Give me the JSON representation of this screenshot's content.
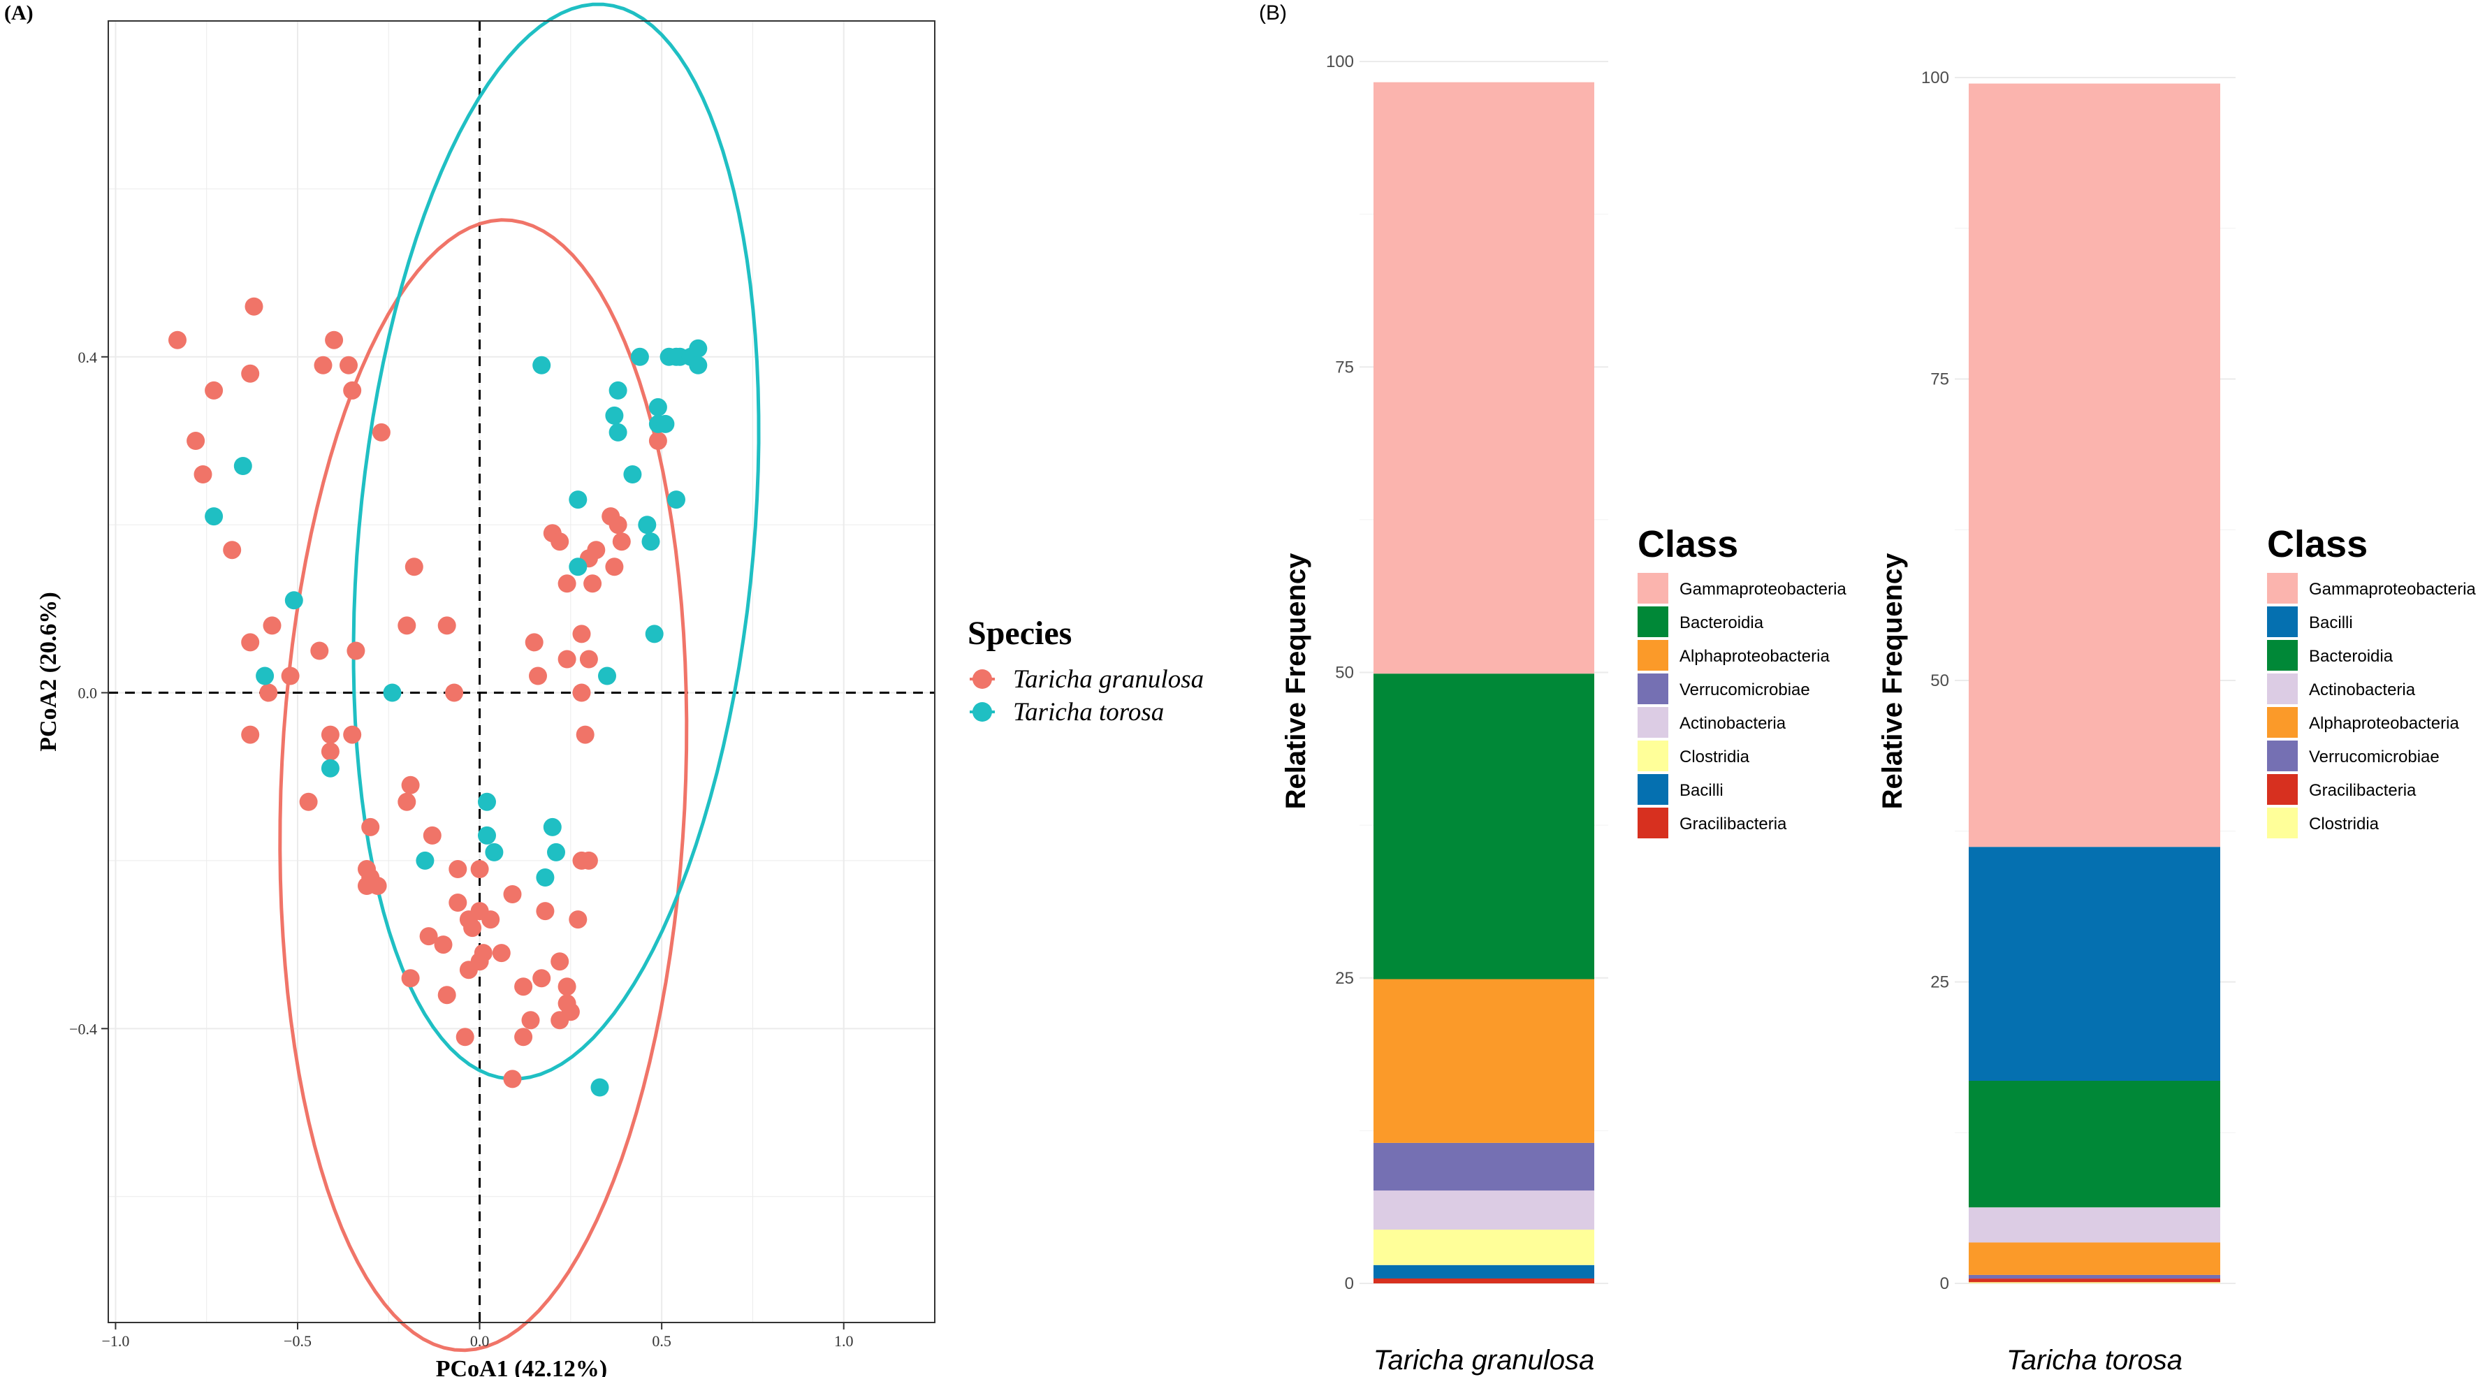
{
  "panel_a": {
    "label": "(A)",
    "legend_title": "Species",
    "legend_items": [
      {
        "name": "Taricha granulosa",
        "color": "#F07468"
      },
      {
        "name": "Taricha torosa",
        "color": "#1FBFC3"
      }
    ]
  },
  "panel_b": {
    "label": "(B)"
  },
  "chart_data": [
    {
      "type": "scatter",
      "title": "",
      "xlabel": "PCoA1 (42.12%)",
      "ylabel": "PCoA2 (20.6%)",
      "xlim": [
        -1.02,
        1.25
      ],
      "ylim": [
        -0.75,
        0.8
      ],
      "xticks": [
        -1.0,
        -0.5,
        0.0,
        0.5,
        1.0
      ],
      "xtick_labels": [
        "−1.0",
        "−0.5",
        "0.0",
        "0.5",
        "1.0"
      ],
      "yticks": [
        -0.4,
        0.0,
        0.4
      ],
      "ytick_labels": [
        "−0.4",
        "0.0",
        "0.4"
      ],
      "grid": true,
      "reference_lines": {
        "x": 0,
        "y": 0
      },
      "series": [
        {
          "name": "Taricha granulosa",
          "color": "#F07468",
          "ellipse": {
            "cx": 0.01,
            "cy": -0.11,
            "rx": 0.68,
            "ry": 0.55,
            "angle_deg": 76
          },
          "points": [
            [
              -0.83,
              0.42
            ],
            [
              -0.62,
              0.46
            ],
            [
              -0.4,
              0.42
            ],
            [
              -0.43,
              0.39
            ],
            [
              -0.36,
              0.39
            ],
            [
              -0.73,
              0.36
            ],
            [
              -0.63,
              0.38
            ],
            [
              -0.35,
              0.36
            ],
            [
              -0.78,
              0.3
            ],
            [
              -0.27,
              0.31
            ],
            [
              -0.76,
              0.26
            ],
            [
              -0.68,
              0.17
            ],
            [
              -0.18,
              0.15
            ],
            [
              -0.2,
              0.08
            ],
            [
              -0.09,
              0.08
            ],
            [
              -0.57,
              0.08
            ],
            [
              -0.63,
              0.06
            ],
            [
              -0.44,
              0.05
            ],
            [
              -0.34,
              0.05
            ],
            [
              -0.52,
              0.02
            ],
            [
              -0.58,
              0.0
            ],
            [
              -0.07,
              0.0
            ],
            [
              0.16,
              0.02
            ],
            [
              -0.63,
              -0.05
            ],
            [
              -0.41,
              -0.05
            ],
            [
              -0.35,
              -0.05
            ],
            [
              -0.41,
              -0.07
            ],
            [
              -0.47,
              -0.13
            ],
            [
              -0.19,
              -0.11
            ],
            [
              -0.2,
              -0.13
            ],
            [
              -0.3,
              -0.16
            ],
            [
              -0.13,
              -0.17
            ],
            [
              -0.31,
              -0.21
            ],
            [
              -0.3,
              -0.22
            ],
            [
              -0.31,
              -0.23
            ],
            [
              -0.28,
              -0.23
            ],
            [
              -0.06,
              -0.21
            ],
            [
              0.0,
              -0.21
            ],
            [
              -0.06,
              -0.25
            ],
            [
              0.0,
              -0.26
            ],
            [
              -0.03,
              -0.27
            ],
            [
              0.03,
              -0.27
            ],
            [
              0.09,
              -0.24
            ],
            [
              0.18,
              -0.26
            ],
            [
              0.27,
              -0.27
            ],
            [
              -0.02,
              -0.28
            ],
            [
              -0.14,
              -0.29
            ],
            [
              -0.1,
              -0.3
            ],
            [
              0.01,
              -0.31
            ],
            [
              0.06,
              -0.31
            ],
            [
              0.0,
              -0.32
            ],
            [
              -0.03,
              -0.33
            ],
            [
              0.22,
              -0.32
            ],
            [
              0.17,
              -0.34
            ],
            [
              -0.19,
              -0.34
            ],
            [
              0.12,
              -0.35
            ],
            [
              0.24,
              -0.35
            ],
            [
              -0.09,
              -0.36
            ],
            [
              0.24,
              -0.37
            ],
            [
              0.25,
              -0.38
            ],
            [
              0.14,
              -0.39
            ],
            [
              0.22,
              -0.39
            ],
            [
              -0.04,
              -0.41
            ],
            [
              0.12,
              -0.41
            ],
            [
              0.09,
              -0.46
            ],
            [
              0.2,
              0.19
            ],
            [
              0.22,
              0.18
            ],
            [
              0.36,
              0.21
            ],
            [
              0.38,
              0.2
            ],
            [
              0.39,
              0.18
            ],
            [
              0.3,
              0.16
            ],
            [
              0.32,
              0.17
            ],
            [
              0.37,
              0.15
            ],
            [
              0.31,
              0.13
            ],
            [
              0.28,
              0.07
            ],
            [
              0.3,
              0.04
            ],
            [
              0.15,
              0.06
            ],
            [
              0.24,
              0.04
            ],
            [
              0.28,
              0.0
            ],
            [
              0.29,
              -0.05
            ],
            [
              0.28,
              -0.2
            ],
            [
              0.3,
              -0.2
            ],
            [
              0.49,
              0.3
            ],
            [
              0.24,
              0.13
            ]
          ]
        },
        {
          "name": "Taricha torosa",
          "color": "#1FBFC3",
          "ellipse": {
            "cx": 0.21,
            "cy": 0.18,
            "rx": 0.67,
            "ry": 0.52,
            "angle_deg": 62
          },
          "points": [
            [
              0.52,
              0.4
            ],
            [
              0.54,
              0.4
            ],
            [
              0.55,
              0.4
            ],
            [
              0.58,
              0.4
            ],
            [
              0.6,
              0.41
            ],
            [
              0.6,
              0.39
            ],
            [
              0.44,
              0.4
            ],
            [
              0.17,
              0.39
            ],
            [
              0.38,
              0.36
            ],
            [
              0.37,
              0.33
            ],
            [
              0.49,
              0.34
            ],
            [
              0.49,
              0.32
            ],
            [
              0.51,
              0.32
            ],
            [
              0.38,
              0.31
            ],
            [
              -0.65,
              0.27
            ],
            [
              0.42,
              0.26
            ],
            [
              -0.73,
              0.21
            ],
            [
              0.27,
              0.23
            ],
            [
              0.54,
              0.23
            ],
            [
              0.46,
              0.2
            ],
            [
              0.47,
              0.18
            ],
            [
              0.27,
              0.15
            ],
            [
              -0.51,
              0.11
            ],
            [
              0.48,
              0.07
            ],
            [
              0.35,
              0.02
            ],
            [
              -0.59,
              0.02
            ],
            [
              -0.24,
              0.0
            ],
            [
              -0.41,
              -0.09
            ],
            [
              0.02,
              -0.13
            ],
            [
              0.2,
              -0.16
            ],
            [
              0.02,
              -0.17
            ],
            [
              0.21,
              -0.19
            ],
            [
              -0.15,
              -0.2
            ],
            [
              0.04,
              -0.19
            ],
            [
              0.18,
              -0.22
            ],
            [
              0.33,
              -0.47
            ]
          ]
        }
      ]
    },
    {
      "type": "stacked_bar",
      "title": "",
      "xlabel": "",
      "ylabel": "Relative Frequency",
      "ylim": [
        0,
        100
      ],
      "yticks": [
        0,
        25,
        50,
        75,
        100
      ],
      "categories": [
        "Taricha granulosa"
      ],
      "legend_title": "Class",
      "legend_position": "right",
      "segments": [
        {
          "name": "Gracilibacteria",
          "color": "#D7301F",
          "value": 0.4
        },
        {
          "name": "Bacilli",
          "color": "#0570B0",
          "value": 1.1
        },
        {
          "name": "Clostridia",
          "color": "#FFFF99",
          "value": 2.9
        },
        {
          "name": "Actinobacteria",
          "color": "#DCCCE4",
          "value": 3.2
        },
        {
          "name": "Verrucomicrobiae",
          "color": "#7570B3",
          "value": 3.9
        },
        {
          "name": "Alphaproteobacteria",
          "color": "#FB9A29",
          "value": 13.4
        },
        {
          "name": "Bacteroidia",
          "color": "#008837",
          "value": 25.0
        },
        {
          "name": "Gammaproteobacteria",
          "color": "#FBB4AE",
          "value": 48.4
        }
      ],
      "legend_order": [
        "Gammaproteobacteria",
        "Bacteroidia",
        "Alphaproteobacteria",
        "Verrucomicrobiae",
        "Actinobacteria",
        "Clostridia",
        "Bacilli",
        "Gracilibacteria"
      ]
    },
    {
      "type": "stacked_bar",
      "title": "",
      "xlabel": "",
      "ylabel": "Relative Frequency",
      "ylim": [
        0,
        100
      ],
      "yticks": [
        0,
        25,
        50,
        75,
        100
      ],
      "categories": [
        "Taricha torosa"
      ],
      "legend_title": "Class",
      "legend_position": "right",
      "segments": [
        {
          "name": "Clostridia",
          "color": "#FFFF99",
          "value": 0.1
        },
        {
          "name": "Gracilibacteria",
          "color": "#D7301F",
          "value": 0.3
        },
        {
          "name": "Verrucomicrobiae",
          "color": "#7570B3",
          "value": 0.3
        },
        {
          "name": "Alphaproteobacteria",
          "color": "#FB9A29",
          "value": 2.7
        },
        {
          "name": "Actinobacteria",
          "color": "#DCCCE4",
          "value": 2.9
        },
        {
          "name": "Bacteroidia",
          "color": "#008837",
          "value": 10.5
        },
        {
          "name": "Bacilli",
          "color": "#0570B0",
          "value": 19.4
        },
        {
          "name": "Gammaproteobacteria",
          "color": "#FBB4AE",
          "value": 63.3
        }
      ],
      "legend_order": [
        "Gammaproteobacteria",
        "Bacilli",
        "Bacteroidia",
        "Actinobacteria",
        "Alphaproteobacteria",
        "Verrucomicrobiae",
        "Gracilibacteria",
        "Clostridia"
      ]
    }
  ]
}
